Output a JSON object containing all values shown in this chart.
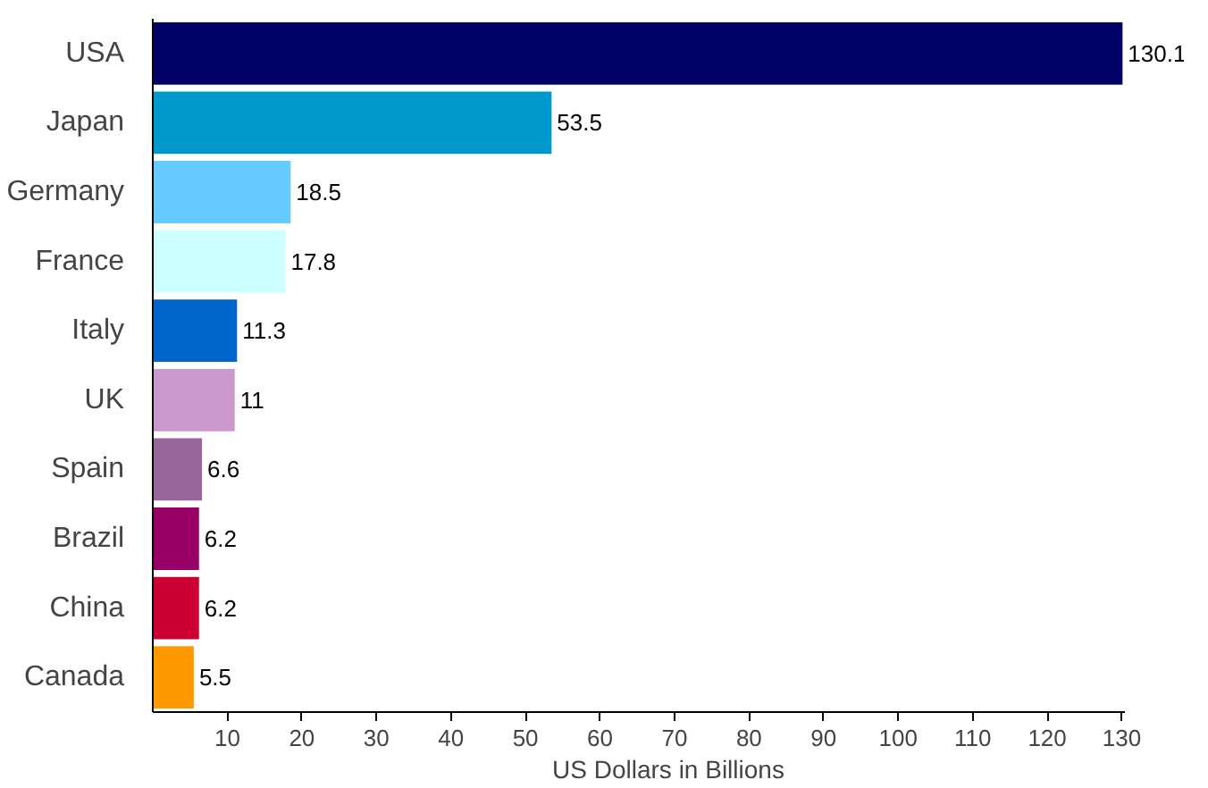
{
  "chart_data": {
    "type": "bar",
    "orientation": "horizontal",
    "xlabel": "US Dollars in Billions",
    "categories": [
      "USA",
      "Japan",
      "Germany",
      "France",
      "Italy",
      "UK",
      "Spain",
      "Brazil",
      "China",
      "Canada"
    ],
    "values": [
      130.1,
      53.5,
      18.5,
      17.8,
      11.3,
      11,
      6.6,
      6.2,
      6.2,
      5.5
    ],
    "value_labels": [
      "130.1",
      "53.5",
      "18.5",
      "17.8",
      "11.3",
      "11",
      "6.6",
      "6.2",
      "6.2",
      "5.5"
    ],
    "colors": [
      "#000066",
      "#0099cc",
      "#66ccff",
      "#ccffff",
      "#0066cc",
      "#cc99cc",
      "#996699",
      "#990066",
      "#cc0033",
      "#ff9900"
    ],
    "xlim": [
      0,
      130.5
    ],
    "xticks": [
      10,
      20,
      30,
      40,
      50,
      60,
      70,
      80,
      90,
      100,
      110,
      120,
      130
    ],
    "grid": false
  }
}
